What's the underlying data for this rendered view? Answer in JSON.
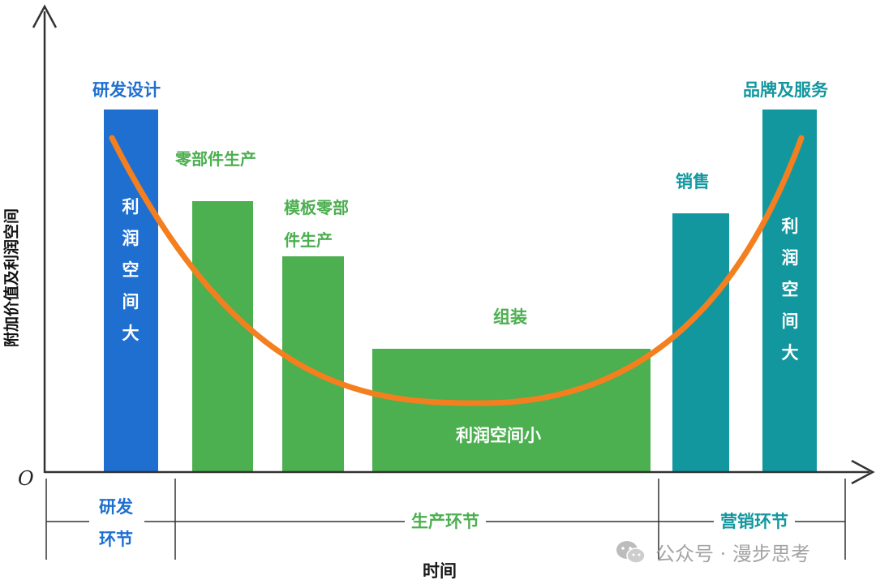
{
  "axes": {
    "y_label": "附加价值及利润空间",
    "x_label": "时间",
    "origin": "O"
  },
  "bars": [
    {
      "id": "rd",
      "top_label": "研发设计",
      "inner_text": "利润空间大",
      "color": "#1f6fd0",
      "value": 0.82
    },
    {
      "id": "parts",
      "top_label": "零部件生产",
      "inner_text": "",
      "color": "#4caf50",
      "value": 0.6
    },
    {
      "id": "template",
      "top_label": "模板零部件生产",
      "inner_text": "",
      "color": "#4caf50",
      "value": 0.48
    },
    {
      "id": "assembly",
      "top_label": "组装",
      "inner_text": "利润空间小",
      "color": "#4caf50",
      "value": 0.27
    },
    {
      "id": "sales",
      "top_label": "销售",
      "inner_text": "",
      "color": "#13979f",
      "value": 0.57
    },
    {
      "id": "brand",
      "top_label": "品牌及服务",
      "inner_text": "利润空间大",
      "color": "#13979f",
      "value": 0.82
    }
  ],
  "labels": {
    "rd_design": "研发设计",
    "parts_production": "零部件生产",
    "template_line1": "模板零部",
    "template_line2": "件生产",
    "assembly": "组装",
    "assembly_inner": "利润空间小",
    "sales": "销售",
    "brand_service": "品牌及服务",
    "rd_inner": "利润空间大",
    "brand_inner": "利润空间大"
  },
  "segments": {
    "rd_line1": "研发",
    "rd_line2": "环节",
    "production": "生产环节",
    "marketing": "营销环节"
  },
  "curve": {
    "color": "#f47f1f"
  },
  "watermark": "公众号 · 漫步思考"
}
